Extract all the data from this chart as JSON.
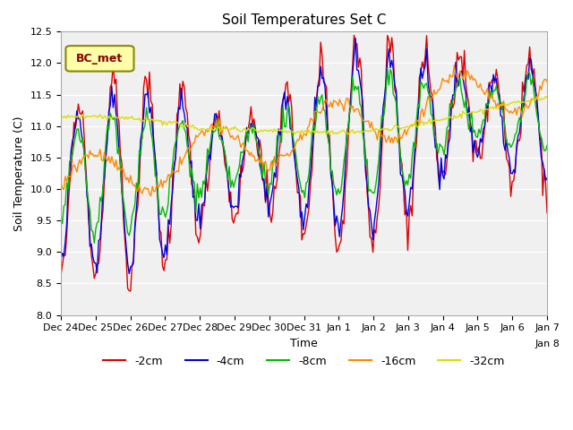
{
  "title": "Soil Temperatures Set C",
  "xlabel": "Time",
  "ylabel": "Soil Temperature (C)",
  "ylim": [
    8.0,
    12.5
  ],
  "legend_label": "BC_met",
  "series_labels": [
    "-2cm",
    "-4cm",
    "-8cm",
    "-16cm",
    "-32cm"
  ],
  "series_colors": [
    "#dd0000",
    "#0000dd",
    "#00bb00",
    "#ff8800",
    "#dddd00"
  ],
  "bg_color": "#e8e8e8",
  "plot_bg_color": "#f0f0f0",
  "tick_labels": [
    "Dec 24",
    "Dec 25",
    "Dec 26",
    "Dec 27",
    "Dec 28",
    "Dec 29",
    "Dec 30",
    "Dec 31",
    "Jan 1",
    "Jan 2",
    "Jan 3",
    "Jan 4",
    "Jan 5",
    "Jan 6",
    "Jan 7",
    "Jan 8"
  ],
  "n_points": 336
}
